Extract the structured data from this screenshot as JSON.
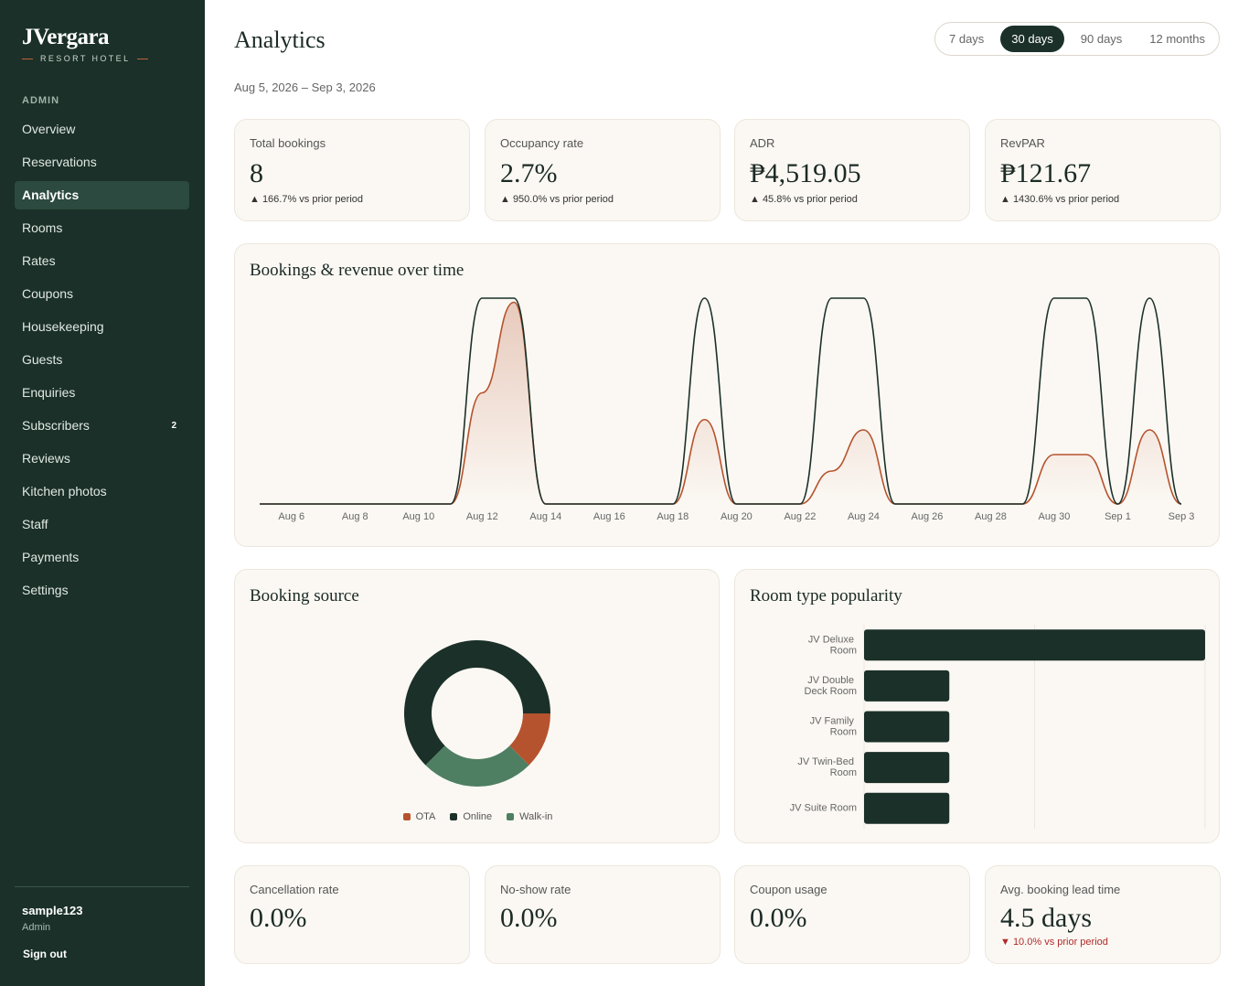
{
  "sidebar": {
    "brand": "JVergara",
    "tagline": "RESORT HOTEL",
    "section": "ADMIN",
    "nav": [
      {
        "label": "Overview"
      },
      {
        "label": "Reservations"
      },
      {
        "label": "Analytics",
        "active": true
      },
      {
        "label": "Rooms"
      },
      {
        "label": "Rates"
      },
      {
        "label": "Coupons"
      },
      {
        "label": "Housekeeping"
      },
      {
        "label": "Guests"
      },
      {
        "label": "Enquiries"
      },
      {
        "label": "Subscribers",
        "badge": 2
      },
      {
        "label": "Reviews"
      },
      {
        "label": "Kitchen photos"
      },
      {
        "label": "Staff"
      },
      {
        "label": "Payments"
      },
      {
        "label": "Settings"
      }
    ],
    "user": {
      "name": "sample123",
      "role": "Admin"
    },
    "sign_out": "Sign out"
  },
  "header": {
    "title": "Analytics",
    "ranges": [
      "7 days",
      "30 days",
      "90 days",
      "12 months"
    ],
    "active_range": 1,
    "date_range": "Aug 5, 2026 – Sep 3, 2026"
  },
  "kpis": [
    {
      "label": "Total bookings",
      "value": "8",
      "change": "▲ 166.7% vs prior period",
      "trend": "up"
    },
    {
      "label": "Occupancy rate",
      "value": "2.7%",
      "change": "▲ 950.0% vs prior period",
      "trend": "up"
    },
    {
      "label": "ADR",
      "value": "₱4,519.05",
      "change": "▲ 45.8% vs prior period",
      "trend": "up"
    },
    {
      "label": "RevPAR",
      "value": "₱121.67",
      "change": "▲ 1430.6% vs prior period",
      "trend": "up"
    }
  ],
  "bottom_kpis": [
    {
      "label": "Cancellation rate",
      "value": "0.0%"
    },
    {
      "label": "No-show rate",
      "value": "0.0%"
    },
    {
      "label": "Coupon usage",
      "value": "0.0%"
    },
    {
      "label": "Avg. booking lead time",
      "value": "4.5 days",
      "change": "▼ 10.0% vs prior period",
      "trend": "down"
    }
  ],
  "chart_data": [
    {
      "type": "line",
      "title": "Bookings & revenue over time",
      "categories": [
        null,
        "Aug 6",
        null,
        "Aug 8",
        null,
        "Aug 10",
        null,
        "Aug 12",
        null,
        "Aug 14",
        null,
        "Aug 16",
        null,
        "Aug 18",
        null,
        "Aug 20",
        null,
        "Aug 22",
        null,
        "Aug 24",
        null,
        "Aug 26",
        null,
        "Aug 28",
        null,
        "Aug 30",
        null,
        "Sep 1",
        null,
        "Sep 3"
      ],
      "series": [
        {
          "color": "#1b3029",
          "values": [
            0,
            0,
            0,
            0,
            0,
            0,
            0,
            1,
            1,
            0,
            0,
            0,
            0,
            0,
            1,
            0,
            0,
            0,
            1,
            1,
            0,
            0,
            0,
            0,
            0,
            1,
            1,
            0,
            1,
            0
          ]
        },
        {
          "color": "#b5532e",
          "axis": "y2",
          "area": true,
          "values": [
            0,
            0,
            0,
            0,
            0,
            0,
            0,
            5940,
            10780,
            0,
            0,
            0,
            0,
            0,
            4510,
            0,
            0,
            0,
            1760,
            3960,
            0,
            0,
            0,
            0,
            0,
            2640,
            2640,
            0,
            3960,
            0
          ]
        }
      ],
      "ylim": [
        0,
        1
      ],
      "y2lim": [
        0,
        11000
      ]
    },
    {
      "type": "pie",
      "title": "Booking source",
      "donut": true,
      "categories": [
        "OTA",
        "Online",
        "Walk-in"
      ],
      "values": [
        1,
        5,
        2
      ],
      "colors": [
        "#b5532e",
        "#1b3029",
        "#4e7f63"
      ],
      "legend": "bottom"
    },
    {
      "type": "bar",
      "orientation": "horizontal",
      "title": "Room type popularity",
      "categories": [
        "JV Deluxe Room",
        "JV Double Deck Room",
        "JV Family Room",
        "JV Twin-Bed Room",
        "JV Suite Room"
      ],
      "values": [
        4,
        1,
        1,
        1,
        1
      ],
      "color": "#1b3029",
      "xlim": [
        0,
        4
      ],
      "xticks": [
        0,
        2,
        4
      ],
      "grid": true
    }
  ]
}
